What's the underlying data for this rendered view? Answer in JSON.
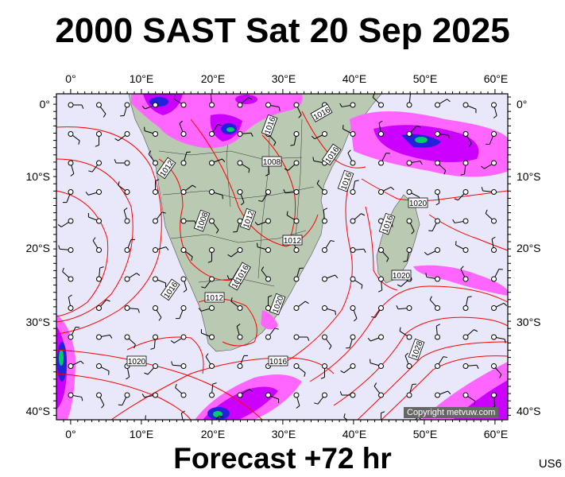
{
  "title": "2000 SAST Sat 20 Sep 2025",
  "footer": "Forecast +72 hr",
  "model_code": "US6",
  "copyright": "Copyright metvuw.com",
  "axes": {
    "lon_labels": [
      "0°",
      "10°E",
      "20°E",
      "30°E",
      "40°E",
      "50°E",
      "60°E"
    ],
    "lat_labels": [
      "0°",
      "10°S",
      "20°S",
      "30°S",
      "40°S"
    ]
  },
  "isobar_labels": [
    "1012",
    "1016",
    "1016",
    "1016",
    "1016",
    "1008",
    "1012",
    "1008",
    "1012",
    "1020",
    "1016",
    "1016",
    "1012",
    "1020",
    "1020",
    "1016",
    "1020",
    "1020",
    "1016",
    "1028"
  ],
  "colors": {
    "ocean": "#e8e8fa",
    "land": "#b9c9b2",
    "isobar": "#ff0000",
    "rain_light": "#ff66ff",
    "rain_mod": "#cc00ff",
    "rain_heavy": "#2222dd",
    "rain_vheavy": "#00cc66"
  }
}
